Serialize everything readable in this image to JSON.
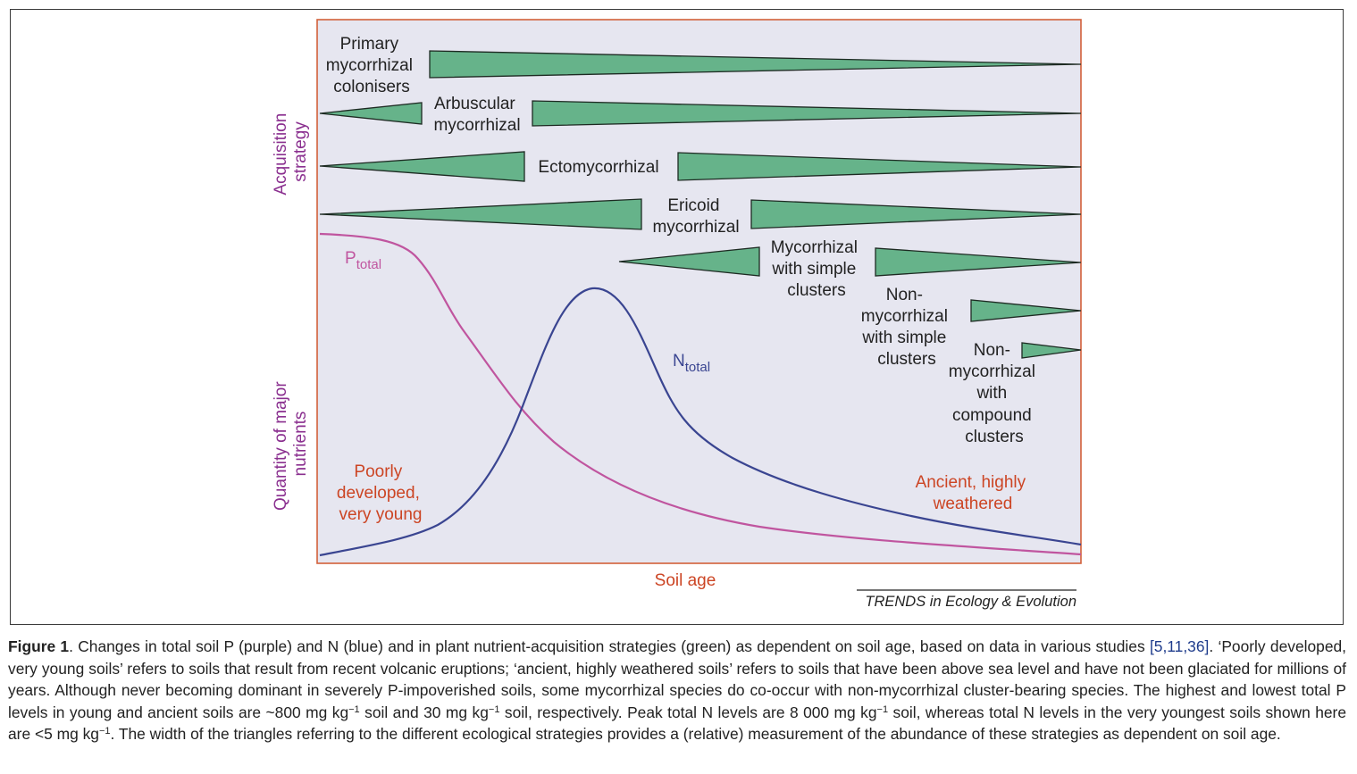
{
  "diagram": {
    "y_axis_top": [
      "Acquisition",
      "strategy"
    ],
    "y_axis_bottom": [
      "Quantity of major",
      "nutrients"
    ],
    "x_axis": "Soil age",
    "source": "TRENDS in Ecology & Evolution",
    "young_label": [
      "Poorly",
      "developed,",
      "very young"
    ],
    "old_label": [
      "Ancient, highly",
      "weathered"
    ],
    "p_label": {
      "main": "P",
      "sub": "total"
    },
    "n_label": {
      "main": "N",
      "sub": "total"
    },
    "strategies": [
      {
        "lines": [
          "Primary",
          "mycorrhizal",
          "colonisers"
        ]
      },
      {
        "lines": [
          "Arbuscular",
          "mycorrhizal"
        ]
      },
      {
        "lines": [
          "Ectomycorrhizal"
        ]
      },
      {
        "lines": [
          "Ericoid",
          "mycorrhizal"
        ]
      },
      {
        "lines": [
          "Mycorrhizal",
          "with simple",
          "clusters"
        ]
      },
      {
        "lines": [
          "Non-",
          "mycorrhizal",
          "with simple",
          "clusters"
        ]
      },
      {
        "lines": [
          "Non-",
          "mycorrhizal",
          "with",
          "compound",
          "clusters"
        ]
      }
    ],
    "colors": {
      "panel_bg": "#e6e6f0",
      "panel_border": "#d2603a",
      "triangle_fill": "#66b38a",
      "triangle_stroke": "#1d2a22",
      "p_curve": "#c0559f",
      "n_curve": "#3a4591",
      "axis_label": "#8a2f8f",
      "age_label": "#cc4524"
    }
  },
  "caption": {
    "label": "Figure 1",
    "t1": ". Changes in total soil P (purple) and N (blue) and in plant nutrient-acquisition strategies (green) as dependent on soil age, based on data in various studies ",
    "refs": "[5,11,36]",
    "t2": ". ‘Poorly developed, very young soils’ refers to soils that result from recent volcanic eruptions; ‘ancient, highly weathered soils’ refers to soils that have been above sea level and have not been glaciated for millions of years. Although never becoming dominant in severely P-impoverished soils, some mycorrhizal species do co-occur with non-mycorrhizal cluster-bearing species. The highest and lowest total P levels in young and ancient soils are ~800 mg kg",
    "sup1": "−1",
    "t3": " soil and 30 mg kg",
    "sup2": "−1",
    "t4": " soil, respectively. Peak total N levels are 8 000 mg kg",
    "sup3": "−1",
    "t5": " soil, whereas total N levels in the very youngest soils shown here are <5 mg kg",
    "sup4": "−1",
    "t6": ". The width of the triangles referring to the different ecological strategies provides a (relative) measurement of the abundance of these strategies as dependent on soil age."
  }
}
